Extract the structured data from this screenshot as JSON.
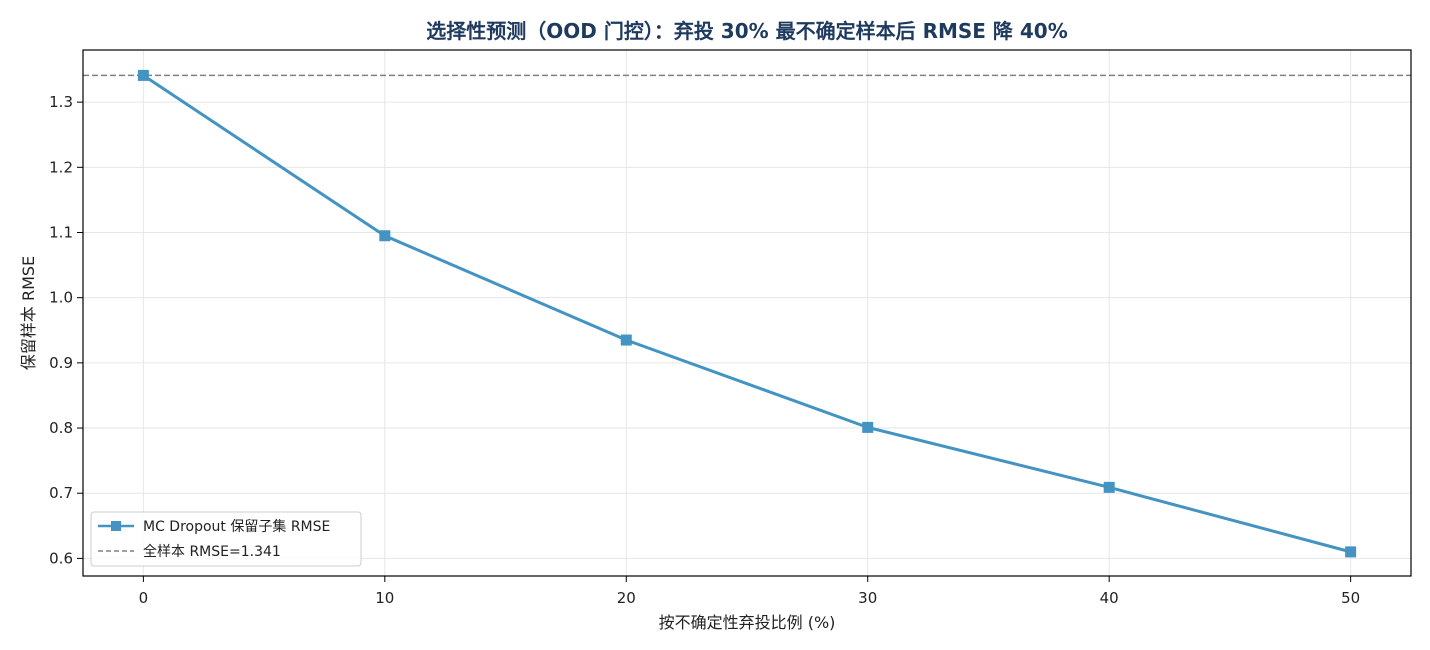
{
  "chart_data": {
    "type": "line",
    "title": "选择性预测（OOD 门控）：弃投 30% 最不确定样本后 RMSE 降 40%",
    "xlabel": "按不确定性弃投比例 (%)",
    "ylabel": "保留样本 RMSE",
    "xlim": [
      -2.5,
      52.5
    ],
    "ylim": [
      0.573,
      1.38
    ],
    "xticks": [
      0,
      10,
      20,
      30,
      40,
      50
    ],
    "yticks": [
      0.6,
      0.7,
      0.8,
      0.9,
      1.0,
      1.1,
      1.2,
      1.3
    ],
    "ytick_labels": [
      "0.6",
      "0.7",
      "0.8",
      "0.9",
      "1.0",
      "1.1",
      "1.2",
      "1.3"
    ],
    "grid": true,
    "legend_position": "lower-left",
    "series": [
      {
        "name": "MC Dropout 保留子集 RMSE",
        "x": [
          0,
          10,
          20,
          30,
          40,
          50
        ],
        "y": [
          1.341,
          1.095,
          0.935,
          0.801,
          0.709,
          0.61
        ],
        "color": "#4393c3",
        "marker": "square"
      }
    ],
    "reference_line": {
      "name": "全样本 RMSE=1.341",
      "y": 1.341,
      "color": "#808080",
      "style": "dashed"
    },
    "title_color": "#1f3a5f"
  }
}
